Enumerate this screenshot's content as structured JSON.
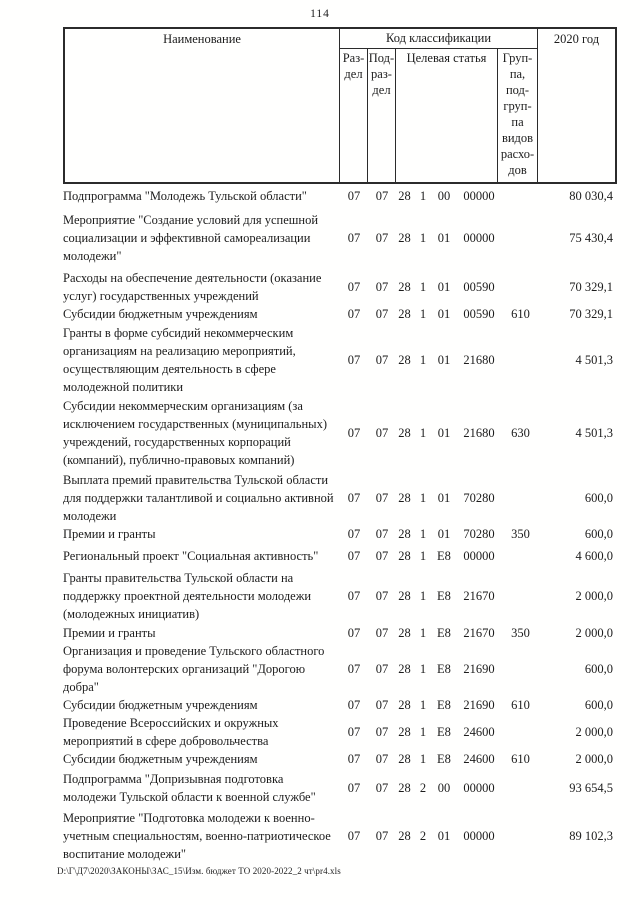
{
  "page": {
    "number": "114",
    "footer_path": "D:\\Г\\Д7\\2020\\ЗАКОНЫ\\ЗАС_15\\Изм. бюджет ТО 2020-2022_2 чт\\pr4.xls"
  },
  "table": {
    "header": {
      "name": "Наименование",
      "code_group": "Код классификации",
      "razdel": "Раз-\nдел",
      "podrazdel": "Под-\nраз-\nдел",
      "celevaya_statya": "Целевая статья",
      "vid_raskhodov": "Груп-\nпа,\nпод-\nгруп-\nпа\nвидов\nрасхо-\nдов",
      "year": "2020 год"
    },
    "rows": [
      {
        "name": "Подпрограмма \"Молодежь Тульской области\"",
        "razdel": "07",
        "podrazdel": "07",
        "celevaya_statya": [
          "28",
          "1",
          "00",
          "00000"
        ],
        "vid_raskhodov": "",
        "amount_2020": "80 030,4"
      },
      {
        "name": "Мероприятие \"Создание условий для успешной социализации и эффективной самореализации молодежи\"",
        "razdel": "07",
        "podrazdel": "07",
        "celevaya_statya": [
          "28",
          "1",
          "01",
          "00000"
        ],
        "vid_raskhodov": "",
        "amount_2020": "75 430,4"
      },
      {
        "name": "Расходы на обеспечение деятельности (оказание услуг) государственных учреждений",
        "razdel": "07",
        "podrazdel": "07",
        "celevaya_statya": [
          "28",
          "1",
          "01",
          "00590"
        ],
        "vid_raskhodov": "",
        "amount_2020": "70 329,1"
      },
      {
        "name": "Субсидии бюджетным учреждениям",
        "razdel": "07",
        "podrazdel": "07",
        "celevaya_statya": [
          "28",
          "1",
          "01",
          "00590"
        ],
        "vid_raskhodov": "610",
        "amount_2020": "70 329,1"
      },
      {
        "name": "Гранты в форме субсидий некоммерческим организациям на реализацию мероприятий, осуществляющим деятельность в сфере молодежной политики",
        "razdel": "07",
        "podrazdel": "07",
        "celevaya_statya": [
          "28",
          "1",
          "01",
          "21680"
        ],
        "vid_raskhodov": "",
        "amount_2020": "4 501,3"
      },
      {
        "name": "Субсидии некоммерческим организациям (за исключением государственных (муниципальных) учреждений, государственных корпораций (компаний), публично-правовых компаний)",
        "razdel": "07",
        "podrazdel": "07",
        "celevaya_statya": [
          "28",
          "1",
          "01",
          "21680"
        ],
        "vid_raskhodov": "630",
        "amount_2020": "4 501,3"
      },
      {
        "name": "Выплата премий правительства Тульской области для поддержки талантливой и социально активной молодежи",
        "razdel": "07",
        "podrazdel": "07",
        "celevaya_statya": [
          "28",
          "1",
          "01",
          "70280"
        ],
        "vid_raskhodov": "",
        "amount_2020": "600,0"
      },
      {
        "name": "Премии и гранты",
        "razdel": "07",
        "podrazdel": "07",
        "celevaya_statya": [
          "28",
          "1",
          "01",
          "70280"
        ],
        "vid_raskhodov": "350",
        "amount_2020": "600,0"
      },
      {
        "name": "Региональный проект \"Социальная активность\"",
        "razdel": "07",
        "podrazdel": "07",
        "celevaya_statya": [
          "28",
          "1",
          "E8",
          "00000"
        ],
        "vid_raskhodov": "",
        "amount_2020": "4 600,0"
      },
      {
        "name": "Гранты правительства Тульской области на поддержку проектной деятельности молодежи (молодежных инициатив)",
        "razdel": "07",
        "podrazdel": "07",
        "celevaya_statya": [
          "28",
          "1",
          "E8",
          "21670"
        ],
        "vid_raskhodov": "",
        "amount_2020": "2 000,0"
      },
      {
        "name": "Премии и гранты",
        "razdel": "07",
        "podrazdel": "07",
        "celevaya_statya": [
          "28",
          "1",
          "E8",
          "21670"
        ],
        "vid_raskhodov": "350",
        "amount_2020": "2 000,0"
      },
      {
        "name": "Организация и проведение Тульского областного форума волонтерских организаций \"Дорогою добра\"",
        "razdel": "07",
        "podrazdel": "07",
        "celevaya_statya": [
          "28",
          "1",
          "E8",
          "21690"
        ],
        "vid_raskhodov": "",
        "amount_2020": "600,0"
      },
      {
        "name": "Субсидии бюджетным учреждениям",
        "razdel": "07",
        "podrazdel": "07",
        "celevaya_statya": [
          "28",
          "1",
          "E8",
          "21690"
        ],
        "vid_raskhodov": "610",
        "amount_2020": "600,0"
      },
      {
        "name": "Проведение Всероссийских и окружных мероприятий в сфере добровольчества",
        "razdel": "07",
        "podrazdel": "07",
        "celevaya_statya": [
          "28",
          "1",
          "E8",
          "24600"
        ],
        "vid_raskhodov": "",
        "amount_2020": "2 000,0"
      },
      {
        "name": "Субсидии бюджетным учреждениям",
        "razdel": "07",
        "podrazdel": "07",
        "celevaya_statya": [
          "28",
          "1",
          "E8",
          "24600"
        ],
        "vid_raskhodov": "610",
        "amount_2020": "2 000,0"
      },
      {
        "name": "Подпрограмма \"Допризывная подготовка молодежи Тульской области к военной службе\"",
        "razdel": "07",
        "podrazdel": "07",
        "celevaya_statya": [
          "28",
          "2",
          "00",
          "00000"
        ],
        "vid_raskhodov": "",
        "amount_2020": "93 654,5"
      },
      {
        "name": "Мероприятие \"Подготовка молодежи к военно-учетным специальностям, военно-патриотическое воспитание молодежи\"",
        "razdel": "07",
        "podrazdel": "07",
        "celevaya_statya": [
          "28",
          "2",
          "01",
          "00000"
        ],
        "vid_raskhodov": "",
        "amount_2020": "89 102,3"
      }
    ]
  }
}
